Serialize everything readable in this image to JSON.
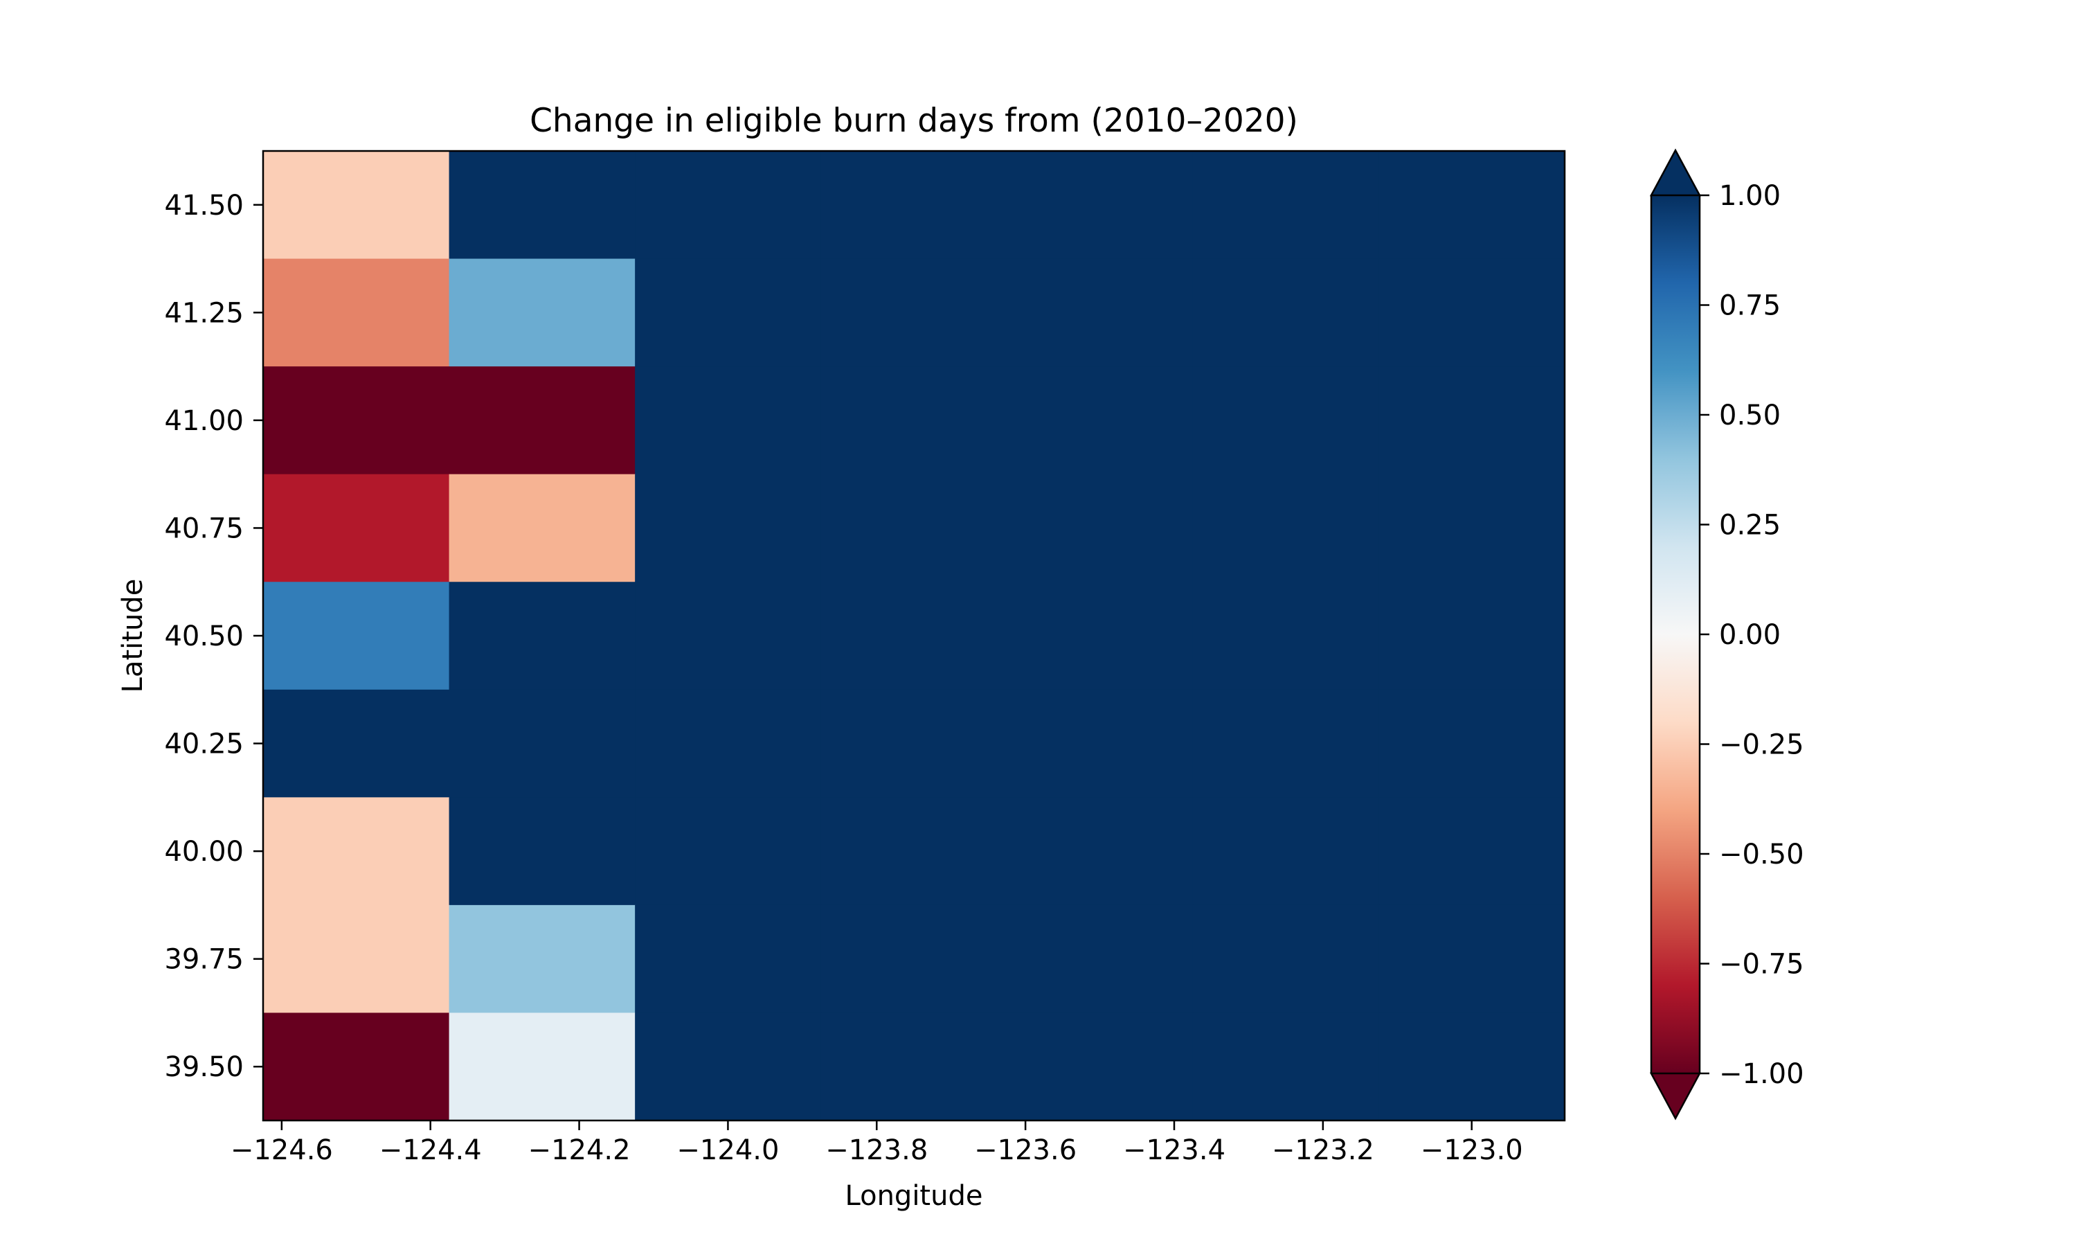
{
  "chart_data": {
    "type": "heatmap",
    "title": "Change in eligible burn days from (2010–2020)",
    "xlabel": "Longitude",
    "ylabel": "Latitude",
    "x_ticks": [
      "−124.6",
      "−124.4",
      "−124.2",
      "−124.0",
      "−123.8",
      "−123.6",
      "−123.4",
      "−123.2",
      "−123.0"
    ],
    "x_tick_values": [
      -124.6,
      -124.4,
      -124.2,
      -124.0,
      -123.8,
      -123.6,
      -123.4,
      -123.2,
      -123.0
    ],
    "y_ticks": [
      "39.50",
      "39.75",
      "40.00",
      "40.25",
      "40.50",
      "40.75",
      "41.00",
      "41.25",
      "41.50"
    ],
    "y_tick_values": [
      39.5,
      39.75,
      40.0,
      40.25,
      40.5,
      40.75,
      41.0,
      41.25,
      41.5
    ],
    "xlim": [
      -124.625,
      -122.875
    ],
    "ylim": [
      39.375,
      41.625
    ],
    "lon_centers": [
      -124.5,
      -124.25,
      -124.0,
      -123.75,
      -123.5,
      -123.25,
      -123.0
    ],
    "lat_centers": [
      41.5,
      41.25,
      41.0,
      40.75,
      40.5,
      40.25,
      40.0,
      39.75,
      39.5
    ],
    "values": [
      [
        -0.25,
        1.0,
        1.0,
        1.0,
        1.0,
        1.0,
        1.0
      ],
      [
        -0.5,
        0.5,
        1.0,
        1.0,
        1.0,
        1.0,
        1.0
      ],
      [
        -1.0,
        -1.0,
        1.0,
        1.0,
        1.0,
        1.0,
        1.0
      ],
      [
        -0.8,
        -0.35,
        1.0,
        1.0,
        1.0,
        1.0,
        1.0
      ],
      [
        0.7,
        1.0,
        1.0,
        1.0,
        1.0,
        1.0,
        1.0
      ],
      [
        1.0,
        1.0,
        1.0,
        1.0,
        1.0,
        1.0,
        1.0
      ],
      [
        -0.25,
        1.0,
        1.0,
        1.0,
        1.0,
        1.0,
        1.0
      ],
      [
        -0.25,
        0.4,
        1.0,
        1.0,
        1.0,
        1.0,
        1.0
      ],
      [
        -1.0,
        0.1,
        1.0,
        1.0,
        1.0,
        1.0,
        1.0
      ]
    ],
    "colorbar": {
      "vmin": -1.0,
      "vmax": 1.0,
      "extend": "both",
      "colormap": "RdBu",
      "tick_labels": [
        "1.00",
        "0.75",
        "0.50",
        "0.25",
        "0.00",
        "−0.25",
        "−0.50",
        "−0.75",
        "−1.00"
      ],
      "tick_values": [
        1.0,
        0.75,
        0.5,
        0.25,
        0.0,
        -0.25,
        -0.5,
        -0.75,
        -1.0
      ]
    },
    "grid": false
  }
}
